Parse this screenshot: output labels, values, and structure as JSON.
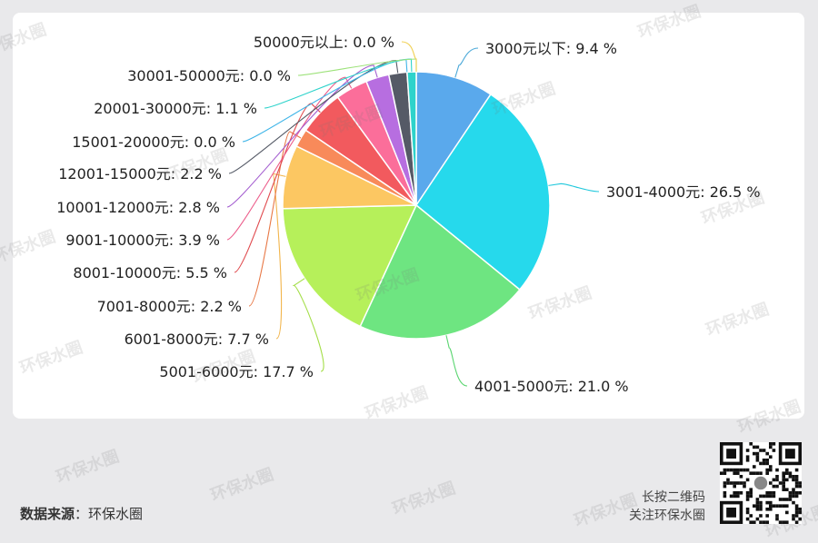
{
  "chart_data": {
    "type": "pie",
    "slices": [
      {
        "label": "3000元以下",
        "value": 9.4,
        "text": "3000元以下: 9.4 %",
        "color": "#5aa9ec",
        "line_color": "#4aa8d8"
      },
      {
        "label": "3001-4000元",
        "value": 26.5,
        "text": "3001-4000元: 26.5 %",
        "color": "#26d9ec",
        "line_color": "#20c8dc"
      },
      {
        "label": "4001-5000元",
        "value": 21.0,
        "text": "4001-5000元: 21.0 %",
        "color": "#6ee581",
        "line_color": "#5ad570"
      },
      {
        "label": "5001-6000元",
        "value": 17.7,
        "text": "5001-6000元: 17.7 %",
        "color": "#b6f05a",
        "line_color": "#a4de48"
      },
      {
        "label": "6001-8000元",
        "value": 7.7,
        "text": "6001-8000元: 7.7 %",
        "color": "#fcc762",
        "line_color": "#f2b54c"
      },
      {
        "label": "7001-8000元",
        "value": 2.2,
        "text": "7001-8000元: 2.2 %",
        "color": "#f88a5a",
        "line_color": "#e87846"
      },
      {
        "label": "8001-10000元",
        "value": 5.5,
        "text": "8001-10000元: 5.5 %",
        "color": "#f25a5e",
        "line_color": "#e04a4e"
      },
      {
        "label": "9001-10000元",
        "value": 3.9,
        "text": "9001-10000元: 3.9 %",
        "color": "#fb6e9a",
        "line_color": "#ec5c8a"
      },
      {
        "label": "10001-12000元",
        "value": 2.8,
        "text": "10001-12000元: 2.8 %",
        "color": "#b76ee0",
        "line_color": "#a45ed0"
      },
      {
        "label": "12001-15000元",
        "value": 2.2,
        "text": "12001-15000元: 2.2 %",
        "color": "#555a66",
        "line_color": "#555a66"
      },
      {
        "label": "15001-20000元",
        "value": 0.0,
        "text": "15001-20000元: 0.0 %",
        "color": "#3fb5e8",
        "line_color": "#3fb5e8"
      },
      {
        "label": "20001-30000元",
        "value": 1.1,
        "text": "20001-30000元: 1.1 %",
        "color": "#2ed3cb",
        "line_color": "#2ed3cb"
      },
      {
        "label": "30001-50000元",
        "value": 0.0,
        "text": "30001-50000元: 0.0 %",
        "color": "#9de27a",
        "line_color": "#9de27a"
      },
      {
        "label": "50000元以上",
        "value": 0.0,
        "text": "50000元以上: 0.0 %",
        "color": "#f3d36a",
        "line_color": "#f0cf50"
      }
    ]
  },
  "footer": {
    "source_label": "数据来源",
    "source_sep": "：",
    "source_value": "环保水圈",
    "qr_caption_line1": "长按二维码",
    "qr_caption_line2": "关注环保水圈"
  },
  "watermark_text": "环保水圈"
}
